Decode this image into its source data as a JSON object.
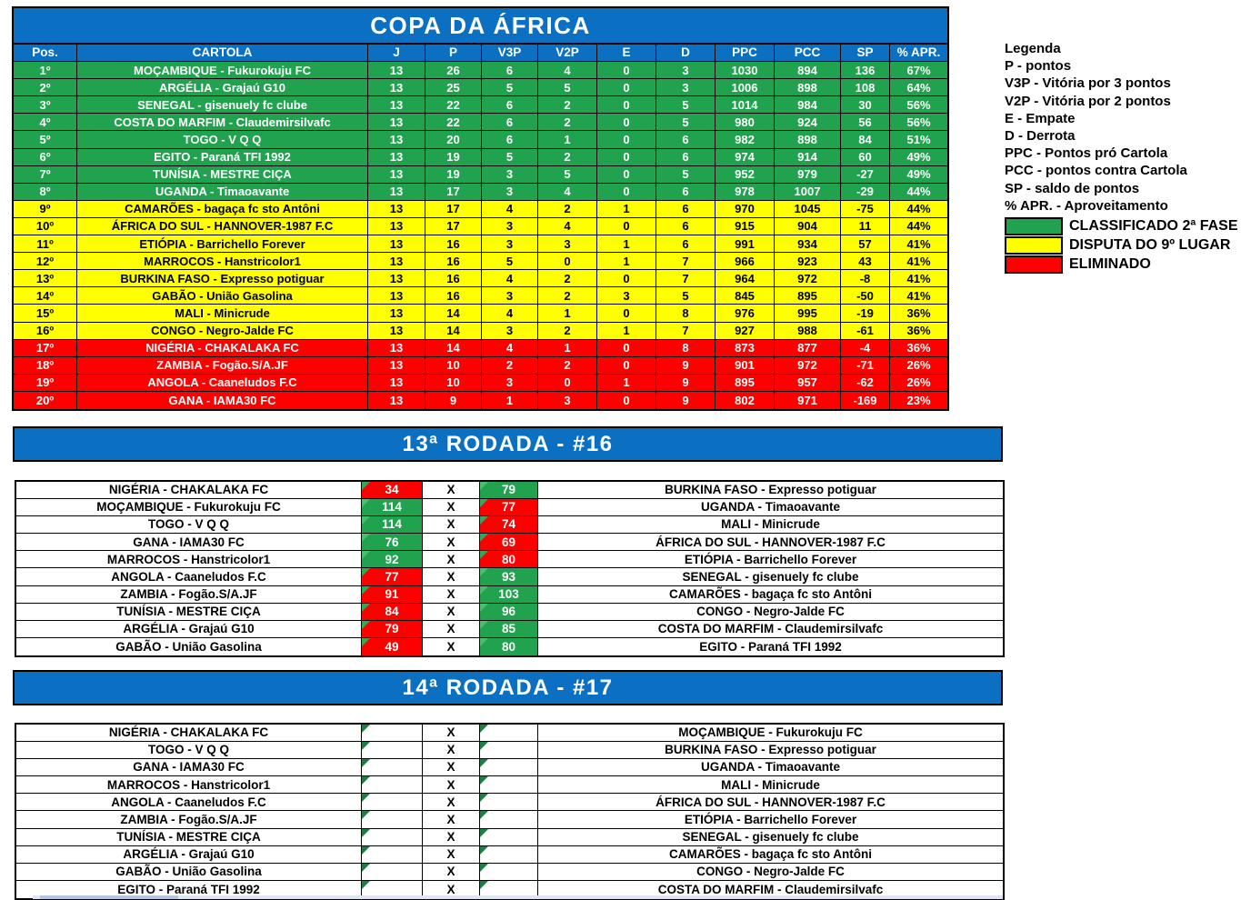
{
  "colors": {
    "header_blue": "#0C70C2",
    "zone_green": "#21A24E",
    "zone_yellow": "#FFFF00",
    "zone_red": "#FE0000",
    "corner_flag_green": "#35A65A"
  },
  "standings": {
    "title": "COPA DA ÁFRICA",
    "columns": [
      "Pos.",
      "CARTOLA",
      "J",
      "P",
      "V3P",
      "V2P",
      "E",
      "D",
      "PPC",
      "PCC",
      "SP",
      "% APR."
    ],
    "rows": [
      {
        "pos": "1º",
        "team": "MOÇAMBIQUE - Fukurokuju FC",
        "j": "13",
        "p": "26",
        "v3p": "6",
        "v2p": "4",
        "e": "0",
        "d": "3",
        "ppc": "1030",
        "pcc": "894",
        "sp": "136",
        "apr": "67%",
        "zone": "green"
      },
      {
        "pos": "2º",
        "team": "ARGÉLIA - Grajaú G10",
        "j": "13",
        "p": "25",
        "v3p": "5",
        "v2p": "5",
        "e": "0",
        "d": "3",
        "ppc": "1006",
        "pcc": "898",
        "sp": "108",
        "apr": "64%",
        "zone": "green"
      },
      {
        "pos": "3º",
        "team": "SENEGAL - gisenuely fc clube",
        "j": "13",
        "p": "22",
        "v3p": "6",
        "v2p": "2",
        "e": "0",
        "d": "5",
        "ppc": "1014",
        "pcc": "984",
        "sp": "30",
        "apr": "56%",
        "zone": "green"
      },
      {
        "pos": "4º",
        "team": "COSTA DO MARFIM - Claudemirsilvafc",
        "j": "13",
        "p": "22",
        "v3p": "6",
        "v2p": "2",
        "e": "0",
        "d": "5",
        "ppc": "980",
        "pcc": "924",
        "sp": "56",
        "apr": "56%",
        "zone": "green"
      },
      {
        "pos": "5º",
        "team": "TOGO  - V Q Q",
        "j": "13",
        "p": "20",
        "v3p": "6",
        "v2p": "1",
        "e": "0",
        "d": "6",
        "ppc": "982",
        "pcc": "898",
        "sp": "84",
        "apr": "51%",
        "zone": "green"
      },
      {
        "pos": "6º",
        "team": "EGITO  - Paraná TFI 1992",
        "j": "13",
        "p": "19",
        "v3p": "5",
        "v2p": "2",
        "e": "0",
        "d": "6",
        "ppc": "974",
        "pcc": "914",
        "sp": "60",
        "apr": "49%",
        "zone": "green"
      },
      {
        "pos": "7º",
        "team": "TUNÍSIA - MESTRE CIÇA",
        "j": "13",
        "p": "19",
        "v3p": "3",
        "v2p": "5",
        "e": "0",
        "d": "5",
        "ppc": "952",
        "pcc": "979",
        "sp": "-27",
        "apr": "49%",
        "zone": "green"
      },
      {
        "pos": "8º",
        "team": "UGANDA - Timaoavante",
        "j": "13",
        "p": "17",
        "v3p": "3",
        "v2p": "4",
        "e": "0",
        "d": "6",
        "ppc": "978",
        "pcc": "1007",
        "sp": "-29",
        "apr": "44%",
        "zone": "green"
      },
      {
        "pos": "9º",
        "team": "CAMARÕES - bagaça fc sto Antôni",
        "j": "13",
        "p": "17",
        "v3p": "4",
        "v2p": "2",
        "e": "1",
        "d": "6",
        "ppc": "970",
        "pcc": "1045",
        "sp": "-75",
        "apr": "44%",
        "zone": "yellow"
      },
      {
        "pos": "10º",
        "team": "ÁFRICA DO SUL - HANNOVER-1987 F.C",
        "j": "13",
        "p": "17",
        "v3p": "3",
        "v2p": "4",
        "e": "0",
        "d": "6",
        "ppc": "915",
        "pcc": "904",
        "sp": "11",
        "apr": "44%",
        "zone": "yellow"
      },
      {
        "pos": "11º",
        "team": "ETIÓPIA - Barrichello Forever",
        "j": "13",
        "p": "16",
        "v3p": "3",
        "v2p": "3",
        "e": "1",
        "d": "6",
        "ppc": "991",
        "pcc": "934",
        "sp": "57",
        "apr": "41%",
        "zone": "yellow"
      },
      {
        "pos": "12º",
        "team": "MARROCOS - Hanstricolor1",
        "j": "13",
        "p": "16",
        "v3p": "5",
        "v2p": "0",
        "e": "1",
        "d": "7",
        "ppc": "966",
        "pcc": "923",
        "sp": "43",
        "apr": "41%",
        "zone": "yellow"
      },
      {
        "pos": "13º",
        "team": "BURKINA FASO - Expresso potiguar",
        "j": "13",
        "p": "16",
        "v3p": "4",
        "v2p": "2",
        "e": "0",
        "d": "7",
        "ppc": "964",
        "pcc": "972",
        "sp": "-8",
        "apr": "41%",
        "zone": "yellow"
      },
      {
        "pos": "14º",
        "team": "GABÃO - União Gasolina",
        "j": "13",
        "p": "16",
        "v3p": "3",
        "v2p": "2",
        "e": "3",
        "d": "5",
        "ppc": "845",
        "pcc": "895",
        "sp": "-50",
        "apr": "41%",
        "zone": "yellow"
      },
      {
        "pos": "15º",
        "team": "MALI - Minicrude",
        "j": "13",
        "p": "14",
        "v3p": "4",
        "v2p": "1",
        "e": "0",
        "d": "8",
        "ppc": "976",
        "pcc": "995",
        "sp": "-19",
        "apr": "36%",
        "zone": "yellow"
      },
      {
        "pos": "16º",
        "team": "CONGO - Negro-Jalde FC",
        "j": "13",
        "p": "14",
        "v3p": "3",
        "v2p": "2",
        "e": "1",
        "d": "7",
        "ppc": "927",
        "pcc": "988",
        "sp": "-61",
        "apr": "36%",
        "zone": "yellow"
      },
      {
        "pos": "17º",
        "team": "NIGÉRIA - CHAKALAKA FC",
        "j": "13",
        "p": "14",
        "v3p": "4",
        "v2p": "1",
        "e": "0",
        "d": "8",
        "ppc": "873",
        "pcc": "877",
        "sp": "-4",
        "apr": "36%",
        "zone": "red"
      },
      {
        "pos": "18º",
        "team": "ZAMBIA - Fogão.S/A.JF",
        "j": "13",
        "p": "10",
        "v3p": "2",
        "v2p": "2",
        "e": "0",
        "d": "9",
        "ppc": "901",
        "pcc": "972",
        "sp": "-71",
        "apr": "26%",
        "zone": "red"
      },
      {
        "pos": "19º",
        "team": "ANGOLA - Caaneludos F.C",
        "j": "13",
        "p": "10",
        "v3p": "3",
        "v2p": "0",
        "e": "1",
        "d": "9",
        "ppc": "895",
        "pcc": "957",
        "sp": "-62",
        "apr": "26%",
        "zone": "red"
      },
      {
        "pos": "20º",
        "team": "GANA - IAMA30 FC",
        "j": "13",
        "p": "9",
        "v3p": "1",
        "v2p": "3",
        "e": "0",
        "d": "9",
        "ppc": "802",
        "pcc": "971",
        "sp": "-169",
        "apr": "23%",
        "zone": "red"
      }
    ]
  },
  "legend": {
    "title": "Legenda",
    "lines": [
      "P - pontos",
      "V3P - Vitória por 3 pontos",
      "V2P - Vitória por 2 pontos",
      "E - Empate",
      "D - Derrota",
      "PPC - Pontos pró Cartola",
      "PCC - pontos contra Cartola",
      "SP - saldo de pontos",
      "% APR. - Aproveitamento"
    ],
    "keys": [
      {
        "label": "CLASSIFICADO 2ª FASE",
        "color": "green"
      },
      {
        "label": "DISPUTA DO 9º LUGAR",
        "color": "yellow"
      },
      {
        "label": "ELIMINADO",
        "color": "red"
      }
    ]
  },
  "rounds": [
    {
      "title": "13ª RODADA - #16",
      "separator": "X",
      "matches": [
        {
          "home": "NIGÉRIA - CHAKALAKA FC",
          "home_score": "34",
          "home_color": "red",
          "away_score": "79",
          "away_color": "green",
          "away": "BURKINA FASO - Expresso potiguar"
        },
        {
          "home": "MOÇAMBIQUE - Fukurokuju FC",
          "home_score": "114",
          "home_color": "green",
          "away_score": "77",
          "away_color": "red",
          "away": "UGANDA - Timaoavante"
        },
        {
          "home": "TOGO  - V Q Q",
          "home_score": "114",
          "home_color": "green",
          "away_score": "74",
          "away_color": "red",
          "away": "MALI - Minicrude"
        },
        {
          "home": "GANA - IAMA30 FC",
          "home_score": "76",
          "home_color": "green",
          "away_score": "69",
          "away_color": "red",
          "away": "ÁFRICA DO SUL - HANNOVER-1987 F.C"
        },
        {
          "home": "MARROCOS - Hanstricolor1",
          "home_score": "92",
          "home_color": "green",
          "away_score": "80",
          "away_color": "red",
          "away": "ETIÓPIA - Barrichello Forever"
        },
        {
          "home": "ANGOLA - Caaneludos F.C",
          "home_score": "77",
          "home_color": "red",
          "away_score": "93",
          "away_color": "green",
          "away": "SENEGAL - gisenuely fc clube"
        },
        {
          "home": "ZAMBIA - Fogão.S/A.JF",
          "home_score": "91",
          "home_color": "red",
          "away_score": "103",
          "away_color": "green",
          "away": "CAMARÕES - bagaça fc sto Antôni"
        },
        {
          "home": "TUNÍSIA - MESTRE CIÇA",
          "home_score": "84",
          "home_color": "red",
          "away_score": "96",
          "away_color": "green",
          "away": "CONGO - Negro-Jalde FC"
        },
        {
          "home": "ARGÉLIA - Grajaú G10",
          "home_score": "79",
          "home_color": "red",
          "away_score": "85",
          "away_color": "green",
          "away": "COSTA DO MARFIM - Claudemirsilvafc"
        },
        {
          "home": "GABÃO - União Gasolina",
          "home_score": "49",
          "home_color": "red",
          "away_score": "80",
          "away_color": "green",
          "away": "EGITO  - Paraná TFI 1992"
        }
      ]
    },
    {
      "title": "14ª RODADA - #17",
      "separator": "X",
      "matches": [
        {
          "home": "NIGÉRIA - CHAKALAKA FC",
          "home_score": "",
          "home_color": "white",
          "away_score": "",
          "away_color": "white",
          "away": "MOÇAMBIQUE - Fukurokuju FC"
        },
        {
          "home": "TOGO  - V Q Q",
          "home_score": "",
          "home_color": "white",
          "away_score": "",
          "away_color": "white",
          "away": "BURKINA FASO - Expresso potiguar"
        },
        {
          "home": "GANA - IAMA30 FC",
          "home_score": "",
          "home_color": "white",
          "away_score": "",
          "away_color": "white",
          "away": "UGANDA - Timaoavante"
        },
        {
          "home": "MARROCOS - Hanstricolor1",
          "home_score": "",
          "home_color": "white",
          "away_score": "",
          "away_color": "white",
          "away": "MALI - Minicrude"
        },
        {
          "home": "ANGOLA - Caaneludos F.C",
          "home_score": "",
          "home_color": "white",
          "away_score": "",
          "away_color": "white",
          "away": "ÁFRICA DO SUL - HANNOVER-1987 F.C"
        },
        {
          "home": "ZAMBIA - Fogão.S/A.JF",
          "home_score": "",
          "home_color": "white",
          "away_score": "",
          "away_color": "white",
          "away": "ETIÓPIA - Barrichello Forever"
        },
        {
          "home": "TUNÍSIA - MESTRE CIÇA",
          "home_score": "",
          "home_color": "white",
          "away_score": "",
          "away_color": "white",
          "away": "SENEGAL - gisenuely fc clube"
        },
        {
          "home": "ARGÉLIA - Grajaú G10",
          "home_score": "",
          "home_color": "white",
          "away_score": "",
          "away_color": "white",
          "away": "CAMARÕES - bagaça fc sto Antôni"
        },
        {
          "home": "GABÃO - União Gasolina",
          "home_score": "",
          "home_color": "white",
          "away_score": "",
          "away_color": "white",
          "away": "CONGO - Negro-Jalde FC"
        },
        {
          "home": "EGITO  - Paraná TFI 1992",
          "home_score": "",
          "home_color": "white",
          "away_score": "",
          "away_color": "white",
          "away": "COSTA DO MARFIM - Claudemirsilvafc"
        }
      ]
    }
  ]
}
